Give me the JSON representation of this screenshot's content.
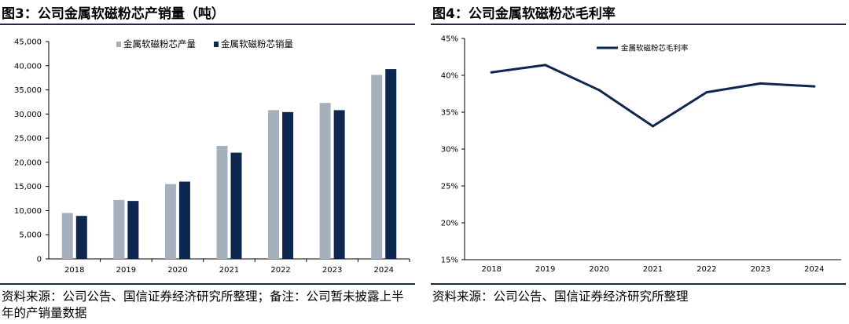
{
  "chart_data": [
    {
      "type": "bar",
      "title": "图3：公司金属软磁粉芯产销量（吨）",
      "categories": [
        "2018",
        "2019",
        "2020",
        "2021",
        "2022",
        "2023",
        "2024"
      ],
      "series": [
        {
          "name": "金属软磁粉芯产量",
          "values": [
            9500,
            12200,
            15500,
            23400,
            30800,
            32300,
            38100
          ],
          "color": "#a5b0bd"
        },
        {
          "name": "金属软磁粉芯销量",
          "values": [
            8900,
            12000,
            16000,
            22000,
            30400,
            30800,
            39300
          ],
          "color": "#0d2750"
        }
      ],
      "y_ticks": [
        "0",
        "5,000",
        "10,000",
        "15,000",
        "20,000",
        "25,000",
        "30,000",
        "35,000",
        "40,000",
        "45,000"
      ],
      "ylim": [
        0,
        45000
      ],
      "legend_position": "top",
      "grid": false,
      "source": "资料来源：公司公告、国信证券经济研究所整理；备注：公司暂未披露上半年的产销量数据"
    },
    {
      "type": "line",
      "title": "图4：公司金属软磁粉芯毛利率",
      "categories": [
        "2018",
        "2019",
        "2020",
        "2021",
        "2022",
        "2023",
        "2024"
      ],
      "series": [
        {
          "name": "金属软磁粉芯毛利率",
          "values": [
            40.4,
            41.4,
            38.0,
            33.1,
            37.7,
            38.9,
            38.5
          ],
          "color": "#0d2750"
        }
      ],
      "y_ticks": [
        "15%",
        "20%",
        "25%",
        "30%",
        "35%",
        "40%",
        "45%"
      ],
      "ylim": [
        15,
        45
      ],
      "legend_position": "top",
      "grid": false,
      "source": "资料来源：公司公告、国信证券经济研究所整理"
    }
  ]
}
